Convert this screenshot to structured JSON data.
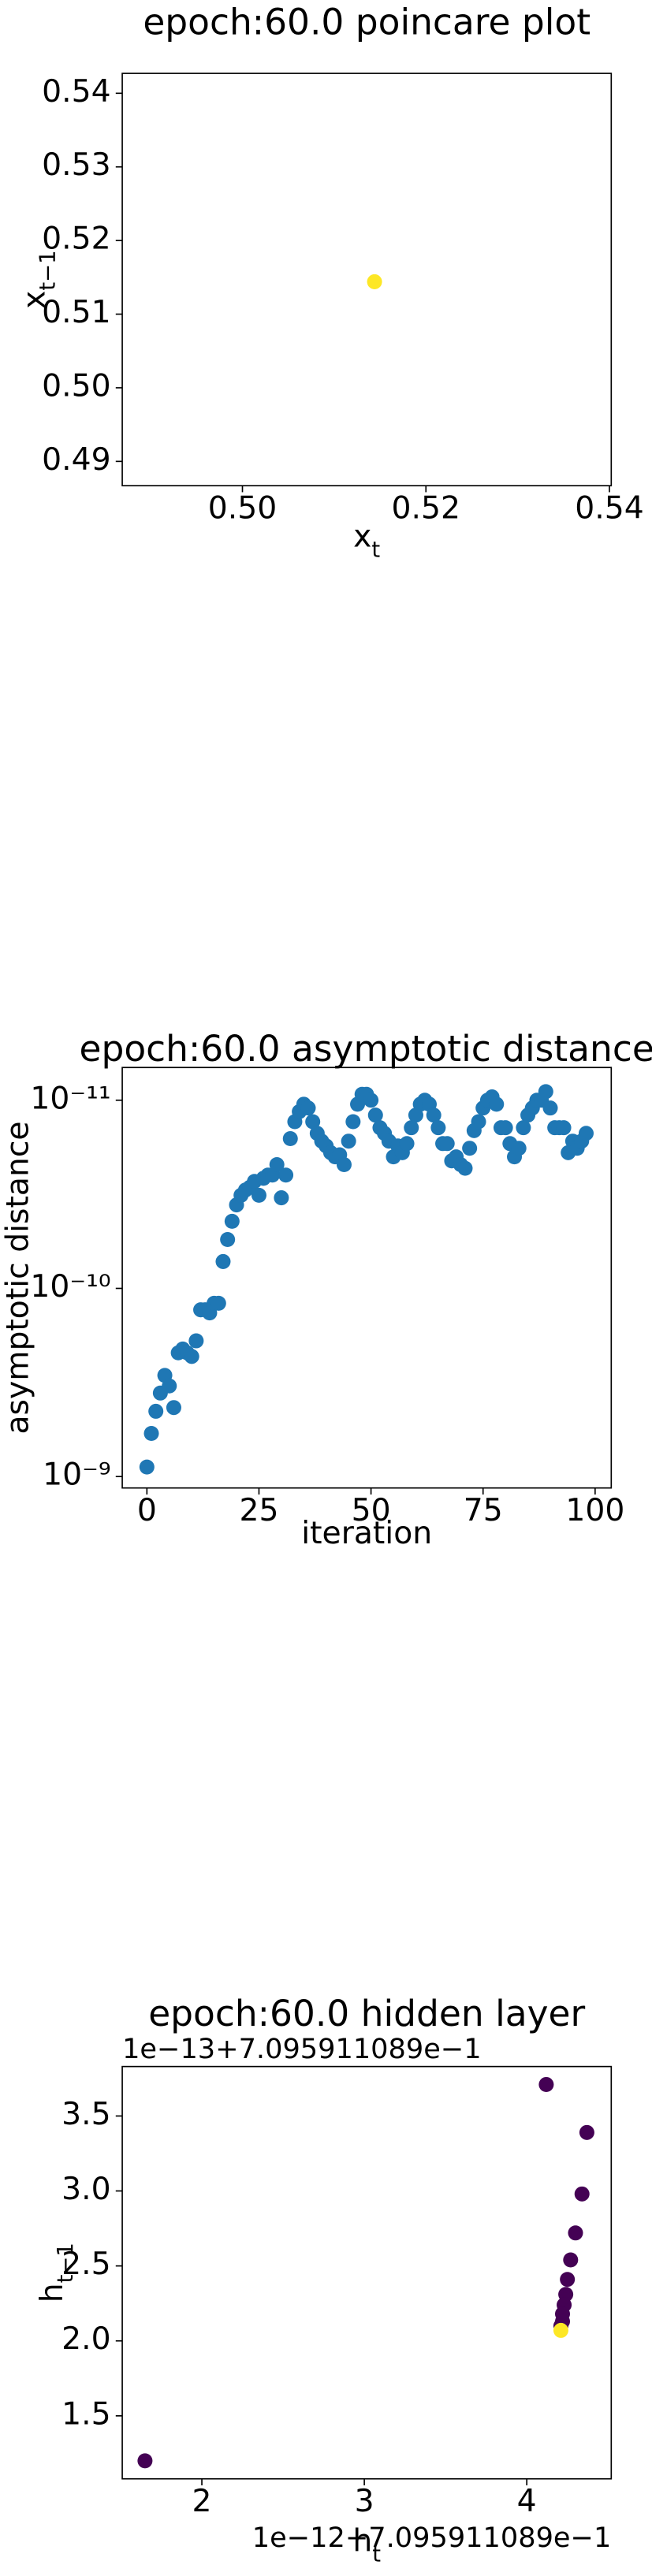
{
  "chart_data": [
    {
      "type": "scatter",
      "title": "epoch:60.0 poincare plot",
      "xlabel": {
        "text": "x",
        "sub": "t"
      },
      "ylabel": {
        "text": "x",
        "sub": "t−1"
      },
      "x": [
        0.5144
      ],
      "y": [
        0.5144
      ],
      "color": "#fde725",
      "xlim": [
        0.4869,
        0.5402
      ],
      "ylim": [
        0.4867,
        0.5427
      ],
      "xticks": [
        {
          "value": 0.5,
          "label": "0.50"
        },
        {
          "value": 0.52,
          "label": "0.52"
        },
        {
          "value": 0.54,
          "label": "0.54"
        }
      ],
      "yticks": [
        {
          "value": 0.49,
          "label": "0.49"
        },
        {
          "value": 0.5,
          "label": "0.50"
        },
        {
          "value": 0.51,
          "label": "0.51"
        },
        {
          "value": 0.52,
          "label": "0.52"
        },
        {
          "value": 0.53,
          "label": "0.53"
        },
        {
          "value": 0.54,
          "label": "0.54"
        }
      ]
    },
    {
      "type": "scatter",
      "title": "epoch:60.0 asymptotic distance",
      "xlabel": "iteration",
      "ylabel": "asymptotic distance",
      "yscale": "log",
      "color": "#1f77b4",
      "x": [
        0,
        1,
        2,
        3,
        4,
        5,
        6,
        7,
        8,
        9,
        10,
        11,
        12,
        13,
        14,
        15,
        16,
        17,
        18,
        19,
        20,
        21,
        22,
        23,
        24,
        25,
        26,
        27,
        28,
        29,
        30,
        31,
        32,
        33,
        34,
        35,
        36,
        37,
        38,
        39,
        40,
        41,
        42,
        43,
        44,
        45,
        46,
        47,
        48,
        49,
        50,
        51,
        52,
        53,
        54,
        55,
        56,
        57,
        58,
        59,
        60,
        61,
        62,
        63,
        64,
        65,
        66,
        67,
        68,
        69,
        70,
        71,
        72,
        73,
        74,
        75,
        76,
        77,
        78,
        79,
        80,
        81,
        82,
        83,
        84,
        85,
        86,
        87,
        88,
        89,
        90,
        91,
        92,
        93,
        94,
        95,
        96,
        97,
        98
      ],
      "y": [
        8.9e-10,
        5.9e-10,
        4.5e-10,
        3.6e-10,
        2.9e-10,
        3.3e-10,
        4.3e-10,
        2.2e-10,
        2.1e-10,
        2.2e-10,
        2.3e-10,
        1.9e-10,
        1.3e-10,
        1.3e-10,
        1.35e-10,
        1.2e-10,
        1.2e-10,
        7.2e-11,
        5.5e-11,
        4.4e-11,
        3.6e-11,
        3.2e-11,
        3e-11,
        2.9e-11,
        2.7e-11,
        3.2e-11,
        2.6e-11,
        2.5e-11,
        2.5e-11,
        2.2e-11,
        3.3e-11,
        2.5e-11,
        1.6e-11,
        1.3e-11,
        1.15e-11,
        1.05e-11,
        1.1e-11,
        1.3e-11,
        1.5e-11,
        1.65e-11,
        1.75e-11,
        1.9e-11,
        2e-11,
        1.95e-11,
        2.2e-11,
        1.65e-11,
        1.3e-11,
        1.05e-11,
        9.3e-12,
        9.3e-12,
        1e-11,
        1.2e-11,
        1.4e-11,
        1.5e-11,
        1.65e-11,
        2e-11,
        1.75e-11,
        1.9e-11,
        1.7e-11,
        1.4e-11,
        1.2e-11,
        1.05e-11,
        1e-11,
        1.05e-11,
        1.2e-11,
        1.4e-11,
        1.7e-11,
        1.7e-11,
        2.1e-11,
        2e-11,
        2.2e-11,
        2.3e-11,
        1.8e-11,
        1.45e-11,
        1.3e-11,
        1.1e-11,
        1e-11,
        9.6e-12,
        1.05e-11,
        1.4e-11,
        1.4e-11,
        1.7e-11,
        2e-11,
        1.8e-11,
        1.4e-11,
        1.2e-11,
        1.1e-11,
        1e-11,
        1e-11,
        9e-12,
        1.1e-11,
        1.4e-11,
        1.4e-11,
        1.4e-11,
        1.9e-11,
        1.65e-11,
        1.8e-11,
        1.65e-11,
        1.5e-11
      ],
      "xlim": [
        -5.5,
        103.6
      ],
      "ylim": [
        1.15e-09,
        6.7e-12
      ],
      "xticks": [
        0,
        25,
        50,
        75,
        100
      ],
      "yticks": [
        {
          "value": 1e-09,
          "label": "10⁻⁹"
        },
        {
          "value": 1e-10,
          "label": "10⁻¹⁰"
        },
        {
          "value": 1e-11,
          "label": "10⁻¹¹"
        }
      ]
    },
    {
      "type": "scatter",
      "title": "epoch:60.0 hidden layer",
      "xlabel": {
        "text": "h",
        "sub": "t"
      },
      "ylabel": {
        "text": "h",
        "sub": "t−1"
      },
      "x_offset_text": "1e−12+7.095911089e−1",
      "y_offset_text": "1e−13+7.095911089e−1",
      "x": [
        1.65,
        4.12,
        4.37,
        4.34,
        4.3,
        4.27,
        4.25,
        4.24,
        4.23,
        4.22,
        4.22,
        4.21,
        4.21
      ],
      "y": [
        1.2,
        3.71,
        3.39,
        2.98,
        2.72,
        2.54,
        2.41,
        2.31,
        2.24,
        2.18,
        2.13,
        2.1,
        2.07
      ],
      "colors": [
        "#440154",
        "#440154",
        "#440154",
        "#440154",
        "#440154",
        "#440154",
        "#440154",
        "#440154",
        "#440154",
        "#440154",
        "#440154",
        "#440154",
        "#fde725"
      ],
      "xlim": [
        1.51,
        4.52
      ],
      "ylim": [
        1.08,
        3.83
      ],
      "xticks": [
        2,
        3,
        4
      ],
      "yticks": [
        {
          "value": 1.5,
          "label": "1.5"
        },
        {
          "value": 2,
          "label": "2.0"
        },
        {
          "value": 2.5,
          "label": "2.5"
        },
        {
          "value": 3,
          "label": "3.0"
        },
        {
          "value": 3.5,
          "label": "3.5"
        }
      ]
    }
  ]
}
